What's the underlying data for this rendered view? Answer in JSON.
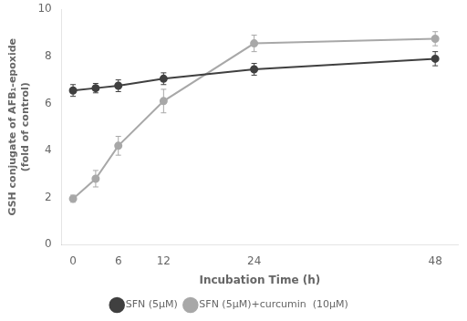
{
  "chart_data": {
    "type": "line",
    "x": [
      0,
      3,
      6,
      12,
      24,
      48
    ],
    "series": [
      {
        "name": "SFN (5μM)",
        "color": "#404040",
        "marker": "circle",
        "values": [
          6.55,
          6.65,
          6.75,
          7.05,
          7.45,
          7.9
        ],
        "errors": [
          0.25,
          0.2,
          0.25,
          0.25,
          0.25,
          0.3
        ]
      },
      {
        "name": "SFN (5μM)+curcumin  (10μM)",
        "color": "#a8a8a8",
        "marker": "circle",
        "values": [
          1.95,
          2.8,
          4.2,
          6.1,
          8.55,
          8.75
        ],
        "errors": [
          0.15,
          0.35,
          0.4,
          0.5,
          0.35,
          0.3
        ]
      }
    ],
    "xlabel": "Incubation Time (h)",
    "ylabel": "GSH conjugate of AFB₁-epoxide\n(fold of control)",
    "xlim": [
      -1.5,
      51
    ],
    "xticks": [
      0,
      6,
      12,
      24,
      48
    ],
    "ylim": [
      0,
      10
    ],
    "yticks": [
      0,
      2,
      4,
      6,
      8,
      10
    ],
    "grid": false,
    "legend": "bottom"
  }
}
